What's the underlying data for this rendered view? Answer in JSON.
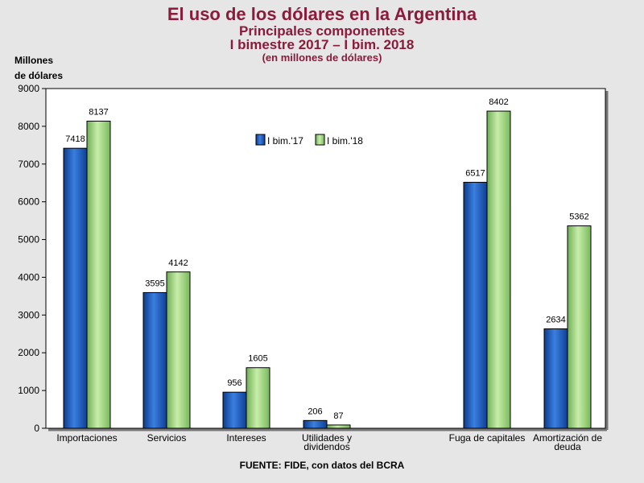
{
  "title": "El uso de los dólares en la Argentina",
  "subtitle1": "Principales componentes",
  "subtitle2": "I bimestre 2017 – I bim. 2018",
  "subtitle3": "(en millones de dólares)",
  "ylabel_line1": "Millones",
  "ylabel_line2": "de dólares",
  "source": "FUENTE: FIDE, con datos del BCRA",
  "colors": {
    "series1": "#1f5fbf",
    "series2": "#a6d88a",
    "frame": "#000000",
    "title": "#8b1a3b"
  },
  "chart_data": {
    "type": "bar",
    "categories": [
      [
        "Importaciones"
      ],
      [
        "Servicios"
      ],
      [
        "Intereses"
      ],
      [
        "Utilidades y",
        "dividendos"
      ],
      [
        "Fuga de capitales"
      ],
      [
        "Amortización de",
        "deuda"
      ]
    ],
    "series": [
      {
        "name": "I bim.'17",
        "values": [
          7418,
          3595,
          956,
          206,
          6517,
          2634
        ]
      },
      {
        "name": "I bim.'18",
        "values": [
          8137,
          4142,
          1605,
          87,
          8402,
          5362
        ]
      }
    ],
    "ylim": [
      0,
      9000
    ],
    "yticks": [
      0,
      1000,
      2000,
      3000,
      4000,
      5000,
      6000,
      7000,
      8000,
      9000
    ],
    "grid": false,
    "legend_position": "top-center"
  }
}
